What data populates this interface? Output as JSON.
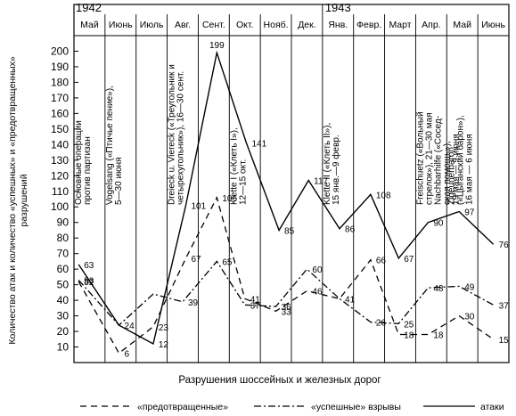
{
  "chart_data": {
    "type": "line",
    "years": [
      {
        "label": "1942",
        "category_index": 0
      },
      {
        "label": "1943",
        "category_index": 8.5
      }
    ],
    "categories": [
      "Май",
      "Июнь",
      "Июль",
      "Авг.",
      "Сент.",
      "Окт.",
      "Нояб.",
      "Дек.",
      "Янв.",
      "Февр.",
      "Март",
      "Апр.",
      "Май",
      "Июнь"
    ],
    "yticks": [
      10,
      20,
      30,
      40,
      50,
      60,
      70,
      80,
      90,
      100,
      110,
      120,
      130,
      140,
      150,
      160,
      170,
      180,
      190,
      200
    ],
    "ylim": [
      0,
      210
    ],
    "ylabel_lines": [
      "Количество атак и количество «успешных» и «предотвращенных»",
      "разрушений"
    ],
    "xlabel": "Разрушения шоссейных и железных дорог",
    "grid": "vertical",
    "legend_position": "bottom",
    "series": [
      {
        "name": "атаки",
        "style": "solid",
        "color": "#000000",
        "points": [
          {
            "x": 0.15,
            "y": 63,
            "label": "63"
          },
          {
            "x": 1.45,
            "y": 24,
            "label": "24"
          },
          {
            "x": 2.55,
            "y": 12,
            "label": "12"
          },
          {
            "x": 3.6,
            "y": 101,
            "label": "101"
          },
          {
            "x": 4.6,
            "y": 199,
            "label": "199"
          },
          {
            "x": 5.55,
            "y": 141,
            "label": "141"
          },
          {
            "x": 6.6,
            "y": 85,
            "label": "85"
          },
          {
            "x": 7.55,
            "y": 117,
            "label": "117"
          },
          {
            "x": 8.55,
            "y": 86,
            "label": "86"
          },
          {
            "x": 9.55,
            "y": 108,
            "label": "108"
          },
          {
            "x": 10.45,
            "y": 67,
            "label": "67"
          },
          {
            "x": 11.4,
            "y": 90,
            "label": "90"
          },
          {
            "x": 12.4,
            "y": 97,
            "label": "97"
          },
          {
            "x": 13.5,
            "y": 76,
            "label": "76"
          }
        ]
      },
      {
        "name": "«успешные» взрывы",
        "style": "dashdot",
        "color": "#000000",
        "points": [
          {
            "x": 0.15,
            "y": 53,
            "label": "53"
          },
          {
            "x": 1.45,
            "y": 24,
            "label": ""
          },
          {
            "x": 2.55,
            "y": 44,
            "label": ""
          },
          {
            "x": 3.5,
            "y": 39,
            "label": "39"
          },
          {
            "x": 4.6,
            "y": 65,
            "label": "65"
          },
          {
            "x": 5.5,
            "y": 37,
            "label": "37"
          },
          {
            "x": 6.5,
            "y": 36,
            "label": "36"
          },
          {
            "x": 7.5,
            "y": 60,
            "label": "60"
          },
          {
            "x": 8.55,
            "y": 41,
            "label": "41"
          },
          {
            "x": 9.55,
            "y": 26,
            "label": "26"
          },
          {
            "x": 10.45,
            "y": 25,
            "label": "25"
          },
          {
            "x": 11.4,
            "y": 48,
            "label": "48"
          },
          {
            "x": 12.4,
            "y": 49,
            "label": "49"
          },
          {
            "x": 13.5,
            "y": 37,
            "label": "37"
          }
        ]
      },
      {
        "name": "«предотвращенные»",
        "style": "dashed",
        "color": "#000000",
        "points": [
          {
            "x": 0.15,
            "y": 52,
            "label": "52"
          },
          {
            "x": 1.45,
            "y": 6,
            "label": "6"
          },
          {
            "x": 2.55,
            "y": 23,
            "label": "23"
          },
          {
            "x": 3.6,
            "y": 67,
            "label": "67"
          },
          {
            "x": 4.6,
            "y": 106,
            "label": "106"
          },
          {
            "x": 5.5,
            "y": 41,
            "label": "41"
          },
          {
            "x": 6.5,
            "y": 33,
            "label": "33"
          },
          {
            "x": 7.5,
            "y": 46,
            "label": "46"
          },
          {
            "x": 8.55,
            "y": 41,
            "label": ""
          },
          {
            "x": 9.55,
            "y": 66,
            "label": "66"
          },
          {
            "x": 10.45,
            "y": 18,
            "label": "18"
          },
          {
            "x": 11.4,
            "y": 18,
            "label": "18"
          },
          {
            "x": 12.4,
            "y": 30,
            "label": "30"
          },
          {
            "x": 13.5,
            "y": 15,
            "label": "15"
          }
        ]
      }
    ],
    "annotations": [
      {
        "column": 0,
        "lines": [
          "Основные операции",
          "против партизан"
        ]
      },
      {
        "column": 1,
        "lines": [
          "Vogelsang («Птичье пение»),",
          "5—30 июня"
        ]
      },
      {
        "column": 3,
        "lines": [
          "Dreieck u. Viereck («Треугольник и",
          "четырехугольник»), 16—30 сент."
        ]
      },
      {
        "column": 5,
        "lines": [
          "Klette I («Клеть I»),",
          "12—15 окт."
        ]
      },
      {
        "column": 8,
        "lines": [
          "Klette II («Клеть II»),",
          "15 янв.—9 февр."
        ]
      },
      {
        "column": 11,
        "lines": [
          "Freischuetz («Вольный",
          "стрелок»), 21—30 мая",
          "Nachbarhilfe («Сосед-",
          "ская помощь»),",
          "19 мая — 9 июня"
        ]
      },
      {
        "column": 12,
        "lines": [
          "Zigeunerbaron",
          "(«Цыганский барон»),",
          "16 мая — 6 июня"
        ]
      }
    ]
  }
}
